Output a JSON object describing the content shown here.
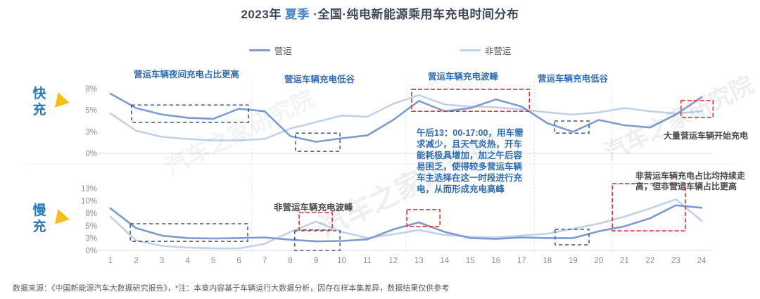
{
  "title": {
    "prefix": "2023年 ",
    "season": "夏季",
    "suffix": " ·全国·纯电新能源乘用车充电时间分布"
  },
  "legend": [
    {
      "label": "营运"
    },
    {
      "label": "非营运"
    }
  ],
  "colors": {
    "operating": "#7C9BD2",
    "non_operating": "#C2D1E6",
    "annotation_blue": "#2E6CB5",
    "annotation_dark": "#4A4A4A",
    "highlight_red": "#E23B3B",
    "box_navy": "#3A5878",
    "season_blue": "#4D85C8",
    "title_dark": "#3F4859",
    "panel_label_blue": "#2979BE",
    "triangle_yellow": "#F9BE15",
    "axis_gray": "#8C8C8C"
  },
  "separators_hours": [
    6.5,
    12.5,
    17.5,
    20.5
  ],
  "chart_data": [
    {
      "type": "line",
      "panel_label": "快充",
      "unit": "%",
      "x": [
        1,
        2,
        3,
        4,
        5,
        6,
        7,
        8,
        9,
        10,
        11,
        12,
        13,
        14,
        15,
        16,
        17,
        18,
        19,
        20,
        21,
        22,
        23,
        24
      ],
      "yticks": [
        0,
        3,
        5,
        8
      ],
      "ytick_labels": [
        "0%",
        "3%",
        "5%",
        "8%"
      ],
      "series": [
        {
          "name": "营运",
          "values": [
            7.3,
            5.3,
            4.6,
            4.3,
            4.2,
            5.2,
            4.9,
            2.4,
            1.6,
            2.1,
            2.5,
            4.1,
            6.3,
            4.9,
            5.3,
            6.5,
            5.5,
            3.8,
            3.0,
            4.1,
            3.6,
            3.4,
            4.6,
            6.8
          ]
        },
        {
          "name": "非营运",
          "values": [
            4.7,
            3.1,
            2.3,
            2.0,
            1.8,
            1.8,
            2.0,
            3.3,
            3.9,
            4.5,
            4.4,
            5.9,
            7.1,
            5.8,
            5.5,
            5.4,
            5.1,
            4.8,
            4.6,
            4.8,
            5.3,
            4.9,
            4.7,
            4.9
          ]
        }
      ],
      "highlight_boxes": [
        {
          "h1": 1.82,
          "h2": 6.37,
          "v1": 3.87,
          "v2": 5.73,
          "style": "navy"
        },
        {
          "h1": 8.2,
          "h2": 9.93,
          "v1": 0.29,
          "v2": 2.82,
          "style": "navy"
        },
        {
          "h1": 12.72,
          "h2": 17.3,
          "v1": 4.9,
          "v2": 7.9,
          "style": "red"
        },
        {
          "h1": 18.28,
          "h2": 19.62,
          "v1": 2.82,
          "v2": 4.0,
          "style": "navy"
        },
        {
          "h1": 23.2,
          "h2": 24.45,
          "v1": 4.33,
          "v2": 6.34,
          "style": "red"
        }
      ]
    },
    {
      "type": "line",
      "panel_label": "慢充",
      "unit": "%",
      "x": [
        1,
        2,
        3,
        4,
        5,
        6,
        7,
        8,
        9,
        10,
        11,
        12,
        13,
        14,
        15,
        16,
        17,
        18,
        19,
        20,
        21,
        22,
        23,
        24
      ],
      "yticks": [
        0,
        3,
        5,
        8,
        10,
        13
      ],
      "ytick_labels": [
        "0%",
        "3%",
        "5%",
        "8%",
        "10%",
        "13%"
      ],
      "series": [
        {
          "name": "营运",
          "values": [
            8.8,
            4.6,
            3.4,
            3.0,
            2.9,
            3.0,
            3.1,
            2.6,
            2.2,
            2.3,
            2.7,
            4.4,
            5.8,
            4.0,
            3.0,
            2.8,
            3.1,
            3.0,
            3.0,
            4.1,
            4.9,
            6.8,
            9.3,
            8.9
          ]
        },
        {
          "name": "非营运",
          "values": [
            7.2,
            2.4,
            1.1,
            0.7,
            0.5,
            0.5,
            1.6,
            4.0,
            6.0,
            4.0,
            3.0,
            3.6,
            4.3,
            3.5,
            3.2,
            3.1,
            3.4,
            3.7,
            4.5,
            5.5,
            7.2,
            8.8,
            10.4,
            6.2
          ]
        }
      ],
      "highlight_boxes": [
        {
          "h1": 1.77,
          "h2": 6.34,
          "v1": 2.21,
          "v2": 5.48,
          "style": "navy"
        },
        {
          "h1": 8.34,
          "h2": 9.63,
          "v1": 4.3,
          "v2": 8.1,
          "style": "red"
        },
        {
          "h1": 8.17,
          "h2": 9.93,
          "v1": 0.0,
          "v2": 4.18,
          "style": "navy"
        },
        {
          "h1": 12.53,
          "h2": 13.82,
          "v1": 4.86,
          "v2": 8.59,
          "style": "red"
        },
        {
          "h1": 18.3,
          "h2": 19.62,
          "v1": 1.36,
          "v2": 4.41,
          "style": "navy"
        },
        {
          "h1": 20.53,
          "h2": 23.37,
          "v1": 4.18,
          "v2": 14.2,
          "style": "red"
        }
      ]
    }
  ],
  "annotations": {
    "fast_night": "营运车辆夜间充电占比更高",
    "fast_valley_1": "营运车辆充电低谷",
    "fast_peak": "营运车辆充电波峰",
    "fast_valley_2": "营运车辆充电低谷",
    "fast_evening": "大量营运车辆开始充电",
    "afternoon_note": "午后13：00-17:00，用车需求减少，且天气炎热，开车能耗极具增加，加之午后容易困乏，使得较多营运车辆车主选择在这一时段进行充电，从而形成充电高峰",
    "slow_peak": "非营运车辆充电波峰",
    "slow_trend": "非营运车辆充电占比均持续走高，但非营运车辆占比更高"
  },
  "footer": "数据来源：《中国新能源汽车大数据研究报告》，*注：本章内容基于车辆运行大数据分析，因存在样本集差异，数据结果仅供参考",
  "watermark": "汽车之家研究院"
}
